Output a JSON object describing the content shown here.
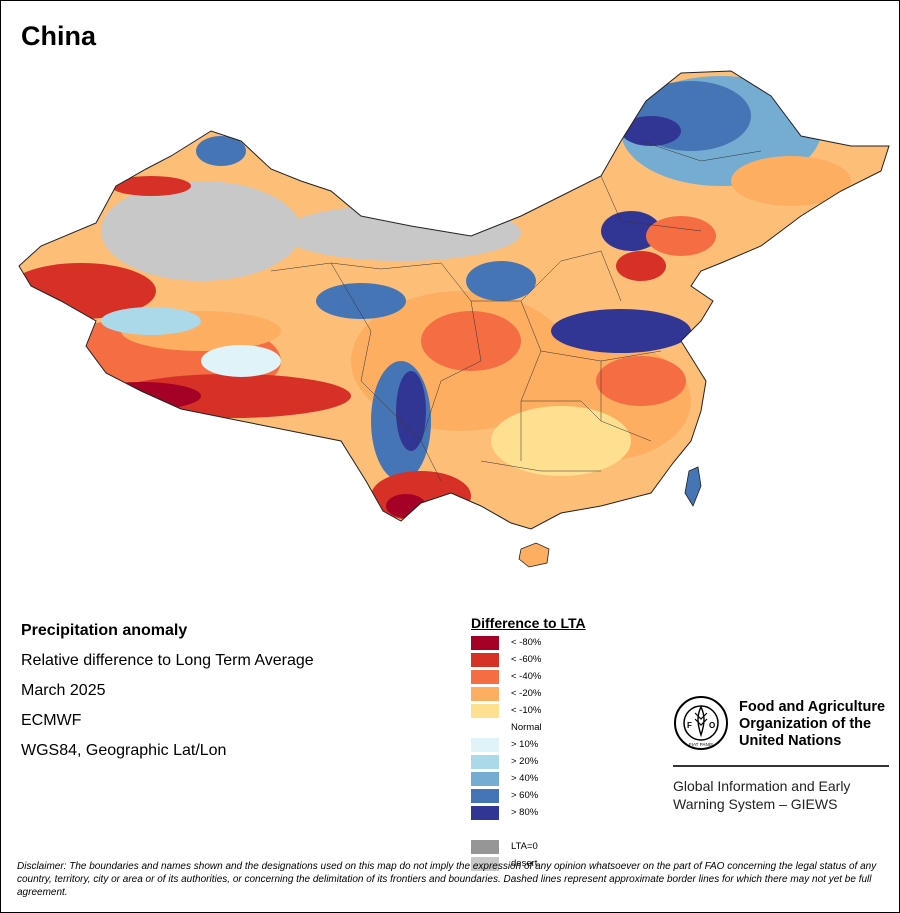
{
  "map_title": "China",
  "info": {
    "heading": "Precipitation anomaly",
    "subtitle": "Relative difference to Long Term Average",
    "period": "March 2025",
    "source": "ECMWF",
    "projection": "WGS84, Geographic Lat/Lon"
  },
  "legend": {
    "title": "Difference to LTA",
    "items": [
      {
        "label": "< -80%",
        "color": "#a50026"
      },
      {
        "label": "< -60%",
        "color": "#d73027"
      },
      {
        "label": "< -40%",
        "color": "#f46d43"
      },
      {
        "label": "< -20%",
        "color": "#fdae61"
      },
      {
        "label": "< -10%",
        "color": "#fee090"
      },
      {
        "label": "Normal",
        "color": ""
      },
      {
        "label": "> 10%",
        "color": "#e0f3f8"
      },
      {
        "label": "> 20%",
        "color": "#abd9e9"
      },
      {
        "label": "> 40%",
        "color": "#74add1"
      },
      {
        "label": "> 60%",
        "color": "#4575b4"
      },
      {
        "label": "> 80%",
        "color": "#313695"
      },
      {
        "label": "",
        "color": ""
      },
      {
        "label": "LTA=0",
        "color": "#969696"
      },
      {
        "label": "desert",
        "color": "#c8c8c8"
      }
    ]
  },
  "organization": {
    "name_line1": "Food and Agriculture",
    "name_line2": "Organization of the",
    "name_line3": "United Nations",
    "emblem_text": "FAO",
    "emblem_motto": "FIAT PANIS",
    "program_line1": "Global Information and Early",
    "program_line2": "Warning System – GIEWS"
  },
  "disclaimer": "Disclaimer: The boundaries and names shown and the designations used on this map do not imply the expression of any opinion whatsoever on the part of FAO concerning the legal status of any country, territory, city or area or of its authorities, or concerning the delimitation of its frontiers and boundaries. Dashed lines represent approximate border lines for which there may not yet be full agreement."
}
